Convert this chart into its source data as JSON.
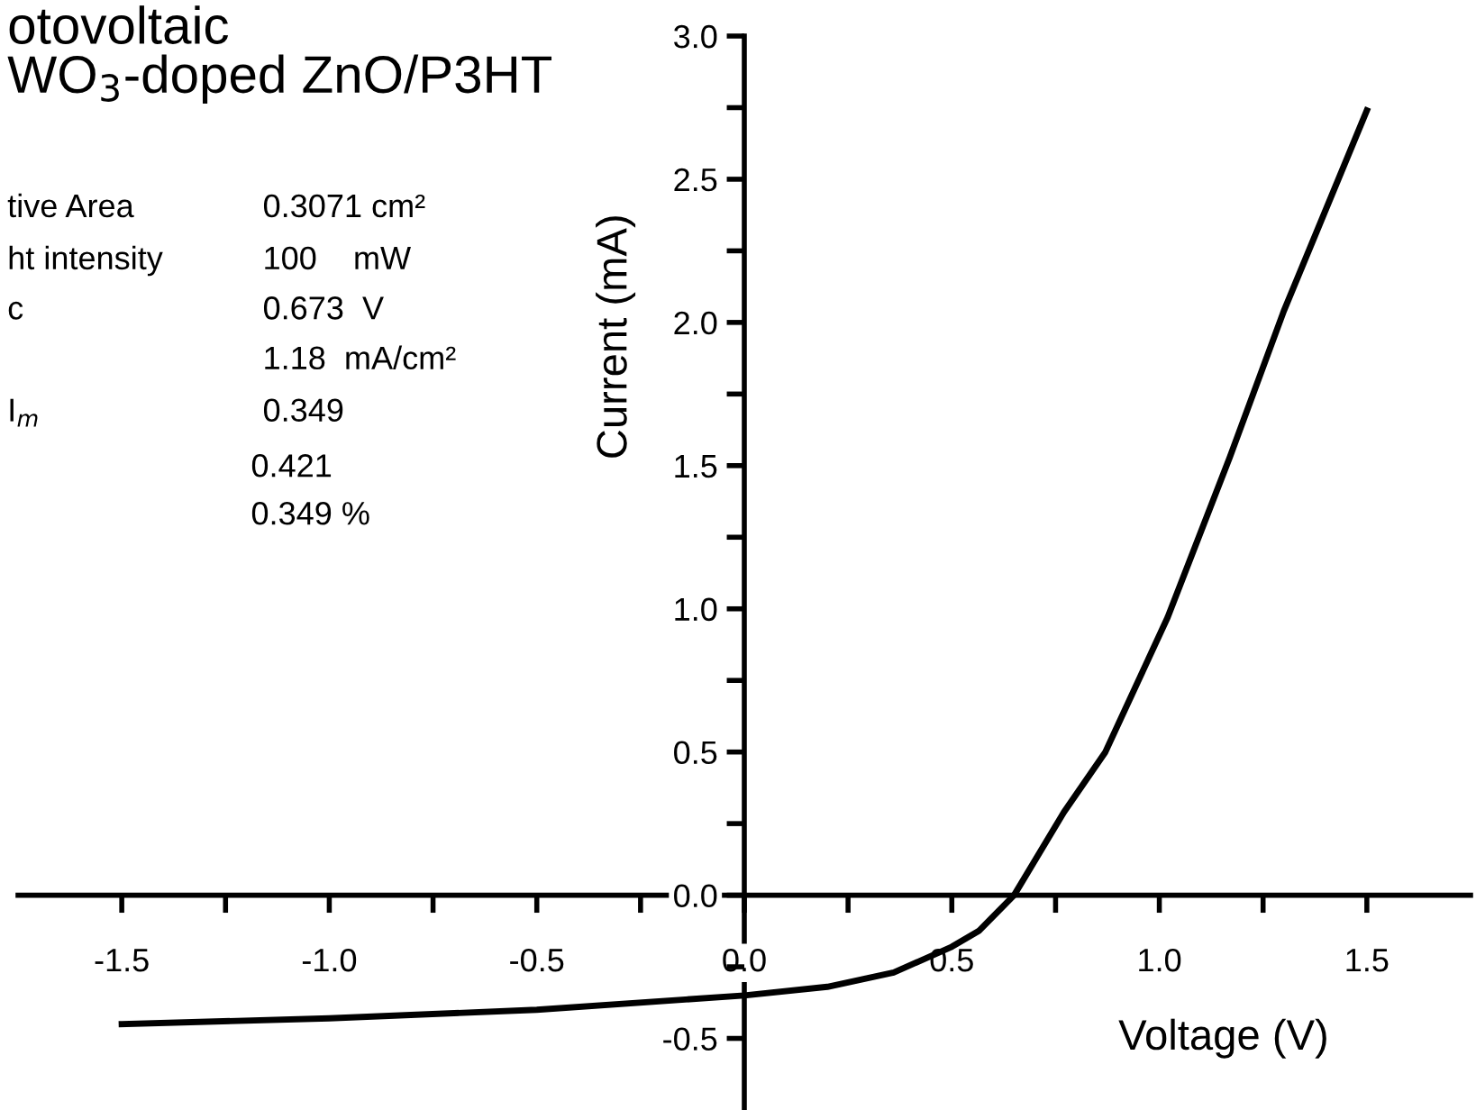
{
  "chart_data": {
    "type": "line",
    "title": "otovoltaic\nWO$_{3}$-doped ZnO/P3HT",
    "xlabel": "Voltage (V)",
    "ylabel": "Current (mA)",
    "x": [
      -1.5,
      -1.0,
      -0.5,
      0.0,
      0.2,
      0.36,
      0.5,
      0.565,
      0.65,
      0.77,
      0.87,
      1.02,
      1.17,
      1.3,
      1.5
    ],
    "series": [
      {
        "color": "#000000",
        "values": [
          -0.45,
          -0.43,
          -0.4,
          -0.35,
          -0.32,
          -0.27,
          -0.18,
          -0.125,
          0.0,
          0.29,
          0.5,
          0.97,
          1.53,
          2.04,
          2.74
        ]
      }
    ],
    "xlim": [
      -1.75,
      1.75
    ],
    "ylim": [
      -0.75,
      3.0
    ],
    "xticks": [
      -1.5,
      {
        "value": -1.25,
        "label": null
      },
      {
        "value": -1,
        "label": "-1.0"
      },
      {
        "value": -0.75,
        "label": null
      },
      -0.5,
      {
        "value": -0.25,
        "label": null
      },
      {
        "value": 0,
        "label": "0.0"
      },
      {
        "value": 0.25,
        "label": null
      },
      0.5,
      {
        "value": 0.75,
        "label": null
      },
      {
        "value": 1,
        "label": "1.0"
      },
      {
        "value": 1.25,
        "label": null
      },
      1.5
    ],
    "yticks": [
      -0.5,
      {
        "value": -0.25,
        "label": null
      },
      {
        "value": 0,
        "label": "0.0"
      },
      {
        "value": 0.25,
        "label": null
      },
      0.5,
      {
        "value": 0.75,
        "label": null
      },
      {
        "value": 1,
        "label": "1.0"
      },
      {
        "value": 1.25,
        "label": null
      },
      1.5,
      {
        "value": 1.75,
        "label": null
      },
      {
        "value": 2,
        "label": "2.0"
      },
      {
        "value": 2.25,
        "label": null
      },
      2.5,
      {
        "value": 2.75,
        "label": null
      },
      {
        "value": 3,
        "label": "3.0"
      }
    ],
    "annotations": [
      "tive Area",
      "0.3071 cm²",
      "ht intensity",
      "100    mW",
      "c",
      "0.673  V",
      "1.18  mA/cm²",
      "I$_{m}$",
      "0.349",
      "0.421",
      "0.349 %"
    ],
    "grid": false,
    "legend": false,
    "marker": "none",
    "line_style": "solid"
  }
}
